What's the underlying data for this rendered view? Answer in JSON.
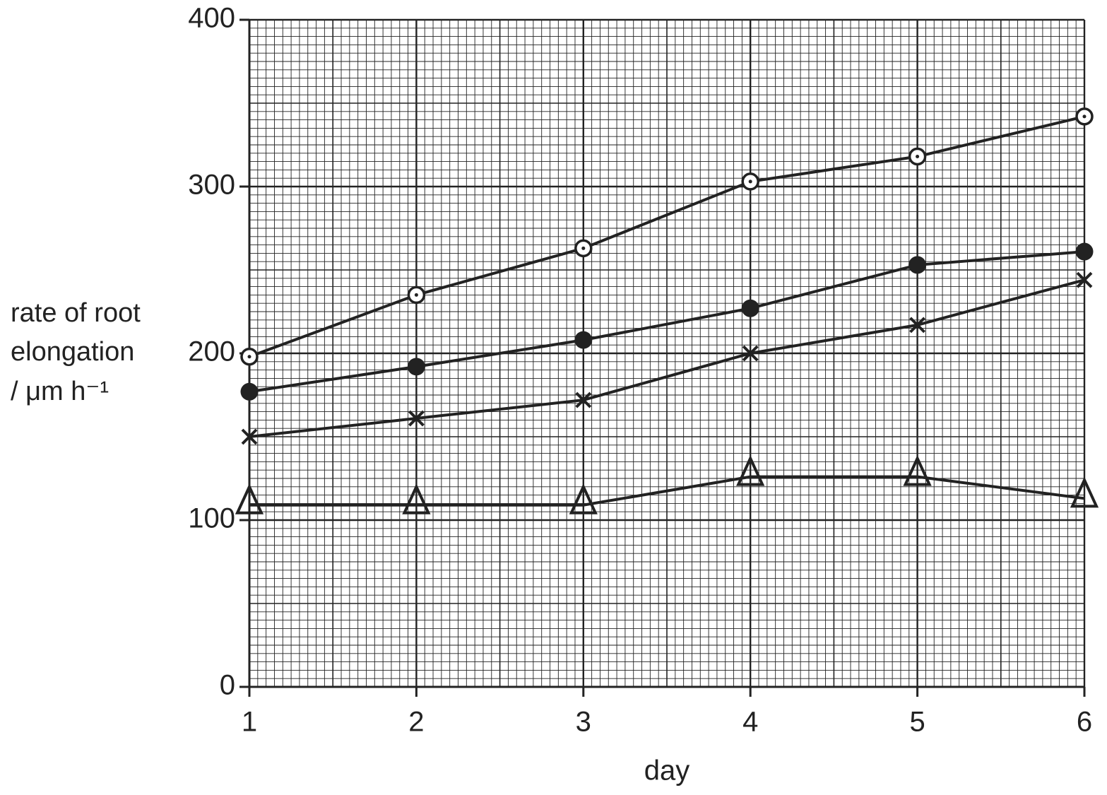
{
  "chart_data": {
    "type": "line",
    "xlabel": "day",
    "ylabel": [
      "rate of root",
      "elongation",
      "/ μm h⁻¹"
    ],
    "x": [
      1,
      2,
      3,
      4,
      5,
      6
    ],
    "xlim": [
      1,
      6
    ],
    "xticks": [
      1,
      2,
      3,
      4,
      5,
      6
    ],
    "ylim": [
      0,
      400
    ],
    "yticks": [
      0,
      100,
      200,
      300,
      400
    ],
    "grid": true,
    "minor_step_x": 0.05,
    "minor_step_y": 5,
    "mid_step_x": 0.5,
    "mid_step_y": 50,
    "series": [
      {
        "color": "#222222",
        "marker": "open-circle",
        "values": [
          198,
          235,
          263,
          303,
          318,
          342
        ]
      },
      {
        "color": "#222222",
        "marker": "filled-circle",
        "values": [
          177,
          192,
          208,
          227,
          253,
          261
        ]
      },
      {
        "color": "#222222",
        "marker": "cross",
        "values": [
          150,
          161,
          172,
          200,
          217,
          244
        ]
      },
      {
        "color": "#222222",
        "marker": "triangle",
        "values": [
          109,
          109,
          109,
          126,
          126,
          113
        ]
      }
    ]
  }
}
